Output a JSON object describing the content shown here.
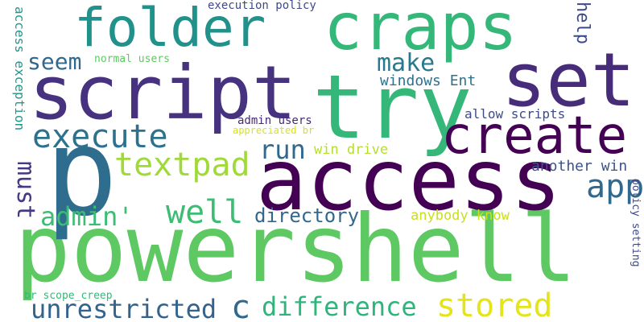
{
  "words": [
    {
      "text": "powershell",
      "color": "#5ec962"
    },
    {
      "text": "p",
      "color": "#2f6d8e"
    },
    {
      "text": "access",
      "color": "#440154"
    },
    {
      "text": "script",
      "color": "#46327e"
    },
    {
      "text": "try",
      "color": "#35b779"
    },
    {
      "text": "craps",
      "color": "#35b779"
    },
    {
      "text": "set",
      "color": "#472c7a"
    },
    {
      "text": "folder",
      "color": "#21918c"
    },
    {
      "text": "create",
      "color": "#440154"
    },
    {
      "text": "execute",
      "color": "#2c728e"
    },
    {
      "text": "textpad",
      "color": "#a0da39"
    },
    {
      "text": "well",
      "color": "#3dbc74"
    },
    {
      "text": "admin'",
      "color": "#3dbc74"
    },
    {
      "text": "directory",
      "color": "#31688e"
    },
    {
      "text": "run",
      "color": "#31688e"
    },
    {
      "text": "app",
      "color": "#31688e"
    },
    {
      "text": "make",
      "color": "#2a788e"
    },
    {
      "text": "seem",
      "color": "#31688e"
    },
    {
      "text": "difference",
      "color": "#2fb47c"
    },
    {
      "text": "stored",
      "color": "#e5e419"
    },
    {
      "text": "unrestricted",
      "color": "#33638d"
    },
    {
      "text": "c",
      "color": "#31688e"
    },
    {
      "text": "must",
      "color": "#443a83"
    },
    {
      "text": "help",
      "color": "#3e4989"
    },
    {
      "text": "windows Ent",
      "color": "#2c728e"
    },
    {
      "text": "another win",
      "color": "#3b528b"
    },
    {
      "text": "allow scripts",
      "color": "#3e4a89"
    },
    {
      "text": "win drive",
      "color": "#b5de2b"
    },
    {
      "text": "anybody know",
      "color": "#c8e020"
    },
    {
      "text": "access exception",
      "color": "#1f988b"
    },
    {
      "text": "execution policy",
      "color": "#3e4a89"
    },
    {
      "text": "normal users",
      "color": "#5ec962"
    },
    {
      "text": "admin users",
      "color": "#482878"
    },
    {
      "text": "appreciated br",
      "color": "#d8e219"
    },
    {
      "text": "policy setting",
      "color": "#3e4989"
    },
    {
      "text": "br scope_creep",
      "color": "#35b779"
    }
  ]
}
